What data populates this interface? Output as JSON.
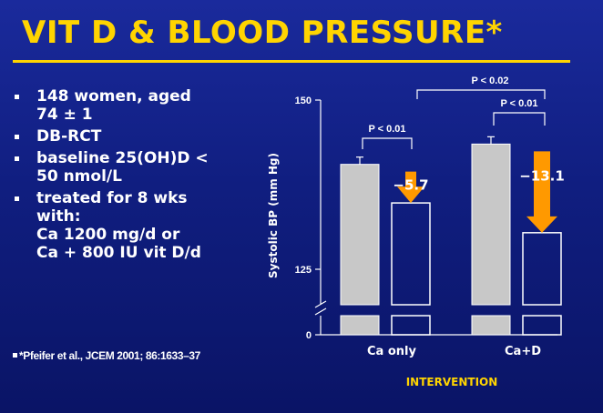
{
  "slide": {
    "title": "VIT D & BLOOD PRESSURE*",
    "bullets": [
      "148 women, aged\n74 ± 1",
      "DB-RCT",
      "baseline 25(OH)D <\n50 nmol/L",
      "treated for 8 wks\nwith:\nCa 1200 mg/d or\nCa + 800 IU vit D/d"
    ],
    "footnote": "*Pfeifer et al., JCEM 2001; 86:1633–37"
  },
  "colors": {
    "title": "#ffd400",
    "background": "#101e80",
    "baseline_bar": "#c8c8c8",
    "followup_bar": "#ffffff",
    "arrow": "#ff9900",
    "text": "#ffffff"
  },
  "chart_data": {
    "type": "bar",
    "xlabel": "INTERVENTION",
    "ylabel": "Systolic BP (mm Hg)",
    "ylim": [
      125,
      150
    ],
    "y_ticks": [
      "150",
      "125",
      "0"
    ],
    "axis_break": true,
    "categories": [
      "Ca only",
      "Ca+D"
    ],
    "series": [
      {
        "values": [
          140.5,
          143.5
        ]
      },
      {
        "values": [
          134.8,
          130.4
        ]
      }
    ],
    "arrows": [
      "−5.7",
      "−13.1"
    ],
    "significance": [
      "P < 0.01",
      "P < 0.01",
      "P < 0.02"
    ]
  }
}
